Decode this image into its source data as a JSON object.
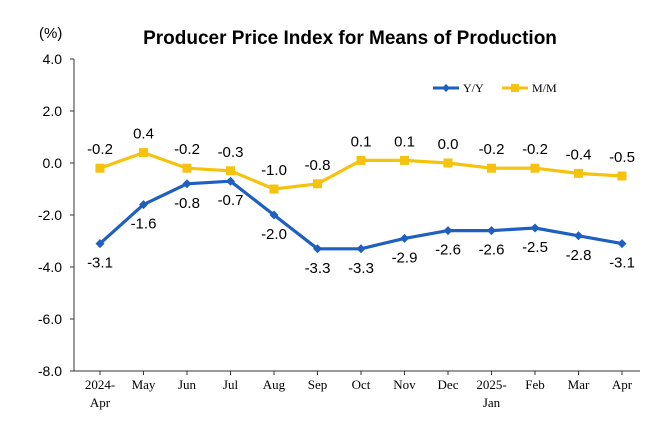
{
  "chart_data": {
    "type": "line",
    "title": "Producer Price Index for Means of Production",
    "unit_label": "(%)",
    "categories": [
      [
        "2024-",
        "Apr"
      ],
      [
        "May"
      ],
      [
        "Jun"
      ],
      [
        "Jul"
      ],
      [
        "Aug"
      ],
      [
        "Sep"
      ],
      [
        "Oct"
      ],
      [
        "Nov"
      ],
      [
        "Dec"
      ],
      [
        "2025-",
        "Jan"
      ],
      [
        "Feb"
      ],
      [
        "Mar"
      ],
      [
        "Apr"
      ]
    ],
    "ylim": [
      -8.0,
      4.0
    ],
    "yticks": [
      "4.0",
      "2.0",
      "0.0",
      "-2.0",
      "-4.0",
      "-6.0",
      "-8.0"
    ],
    "ytick_values": [
      4,
      2,
      0,
      -2,
      -4,
      -6,
      -8
    ],
    "legend_position": "top-right",
    "grid": false,
    "series": [
      {
        "name": "Y/Y",
        "color": "#1f5fbf",
        "marker": "diamond",
        "values": [
          -3.1,
          -1.6,
          -0.8,
          -0.7,
          -2.0,
          -3.3,
          -3.3,
          -2.9,
          -2.6,
          -2.6,
          -2.5,
          -2.8,
          -3.1
        ],
        "labels": [
          "-3.1",
          "-1.6",
          "-0.8",
          "-0.7",
          "-2.0",
          "-3.3",
          "-3.3",
          "-2.9",
          "-2.6",
          "-2.6",
          "-2.5",
          "-2.8",
          "-3.1"
        ],
        "label_position": "below"
      },
      {
        "name": "M/M",
        "color": "#f5c20e",
        "marker": "square",
        "values": [
          -0.2,
          0.4,
          -0.2,
          -0.3,
          -1.0,
          -0.8,
          0.1,
          0.1,
          0.0,
          -0.2,
          -0.2,
          -0.4,
          -0.5
        ],
        "labels": [
          "-0.2",
          "0.4",
          "-0.2",
          "-0.3",
          "-1.0",
          "-0.8",
          "0.1",
          "0.1",
          "0.0",
          "-0.2",
          "-0.2",
          "-0.4",
          "-0.5"
        ],
        "label_position": "above"
      }
    ]
  }
}
